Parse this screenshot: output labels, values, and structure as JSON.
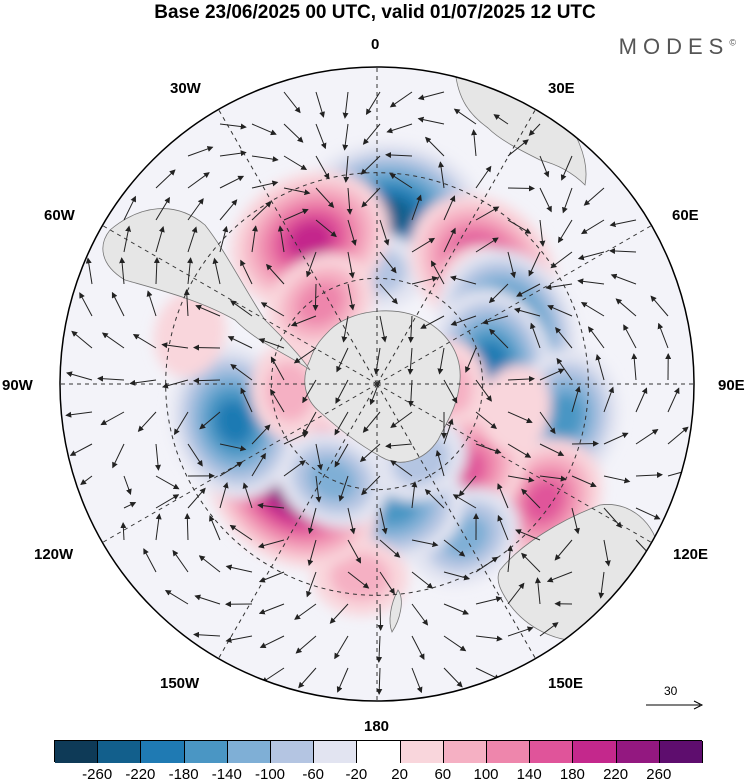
{
  "title": "Base 23/06/2025 00 UTC, valid 01/07/2025 12 UTC",
  "brand": "MODES",
  "brand_mark": "©",
  "longitude_labels": {
    "lon_0": "0",
    "lon_30e": "30E",
    "lon_60e": "60E",
    "lon_90e": "90E",
    "lon_120e": "120E",
    "lon_150e": "150E",
    "lon_180": "180",
    "lon_150w": "150W",
    "lon_120w": "120W",
    "lon_90w": "90W",
    "lon_60w": "60W",
    "lon_30w": "30W"
  },
  "reference_vector": {
    "label": "30"
  },
  "colorbar": {
    "ticks": [
      "-260",
      "-220",
      "-180",
      "-140",
      "-100",
      "-60",
      "-20",
      "20",
      "60",
      "100",
      "140",
      "180",
      "220",
      "260"
    ],
    "colors": [
      "#0e3a57",
      "#125f8c",
      "#1f7ab3",
      "#4a96c4",
      "#7fafd6",
      "#b4c5e2",
      "#e2e4f1",
      "#ffffff",
      "#f9d6dc",
      "#f5b0c3",
      "#ee86ac",
      "#e0549a",
      "#c4288c",
      "#931880",
      "#5e0d6e"
    ]
  },
  "colors": {
    "land": "#e6e6e6",
    "coast": "#666666",
    "grid": "#333333",
    "arrow": "#222222"
  },
  "anomalies": [
    {
      "lon": 5,
      "lat": -42,
      "value": -250
    },
    {
      "lon": 0,
      "lat": -58,
      "value": -60
    },
    {
      "lon": -25,
      "lat": -45,
      "value": 210
    },
    {
      "lon": -35,
      "lat": -62,
      "value": 100
    },
    {
      "lon": 42,
      "lat": -45,
      "value": 200
    },
    {
      "lon": 55,
      "lat": -50,
      "value": 120
    },
    {
      "lon": 68,
      "lat": -50,
      "value": -220
    },
    {
      "lon": 80,
      "lat": -57,
      "value": -180
    },
    {
      "lon": 100,
      "lat": -36,
      "value": -150
    },
    {
      "lon": 95,
      "lat": -70,
      "value": 70
    },
    {
      "lon": 125,
      "lat": -32,
      "value": 140
    },
    {
      "lon": 135,
      "lat": -55,
      "value": 150
    },
    {
      "lon": 150,
      "lat": -40,
      "value": -100
    },
    {
      "lon": 172,
      "lat": -55,
      "value": -160
    },
    {
      "lon": 150,
      "lat": -65,
      "value": -60
    },
    {
      "lon": -175,
      "lat": -35,
      "value": 60
    },
    {
      "lon": -140,
      "lat": -53,
      "value": 265
    },
    {
      "lon": -155,
      "lat": -60,
      "value": -100
    },
    {
      "lon": -105,
      "lat": -48,
      "value": -190
    },
    {
      "lon": -95,
      "lat": -65,
      "value": 60
    },
    {
      "lon": -75,
      "lat": -35,
      "value": 40
    },
    {
      "lon": 100,
      "lat": -50,
      "value": 40
    }
  ]
}
